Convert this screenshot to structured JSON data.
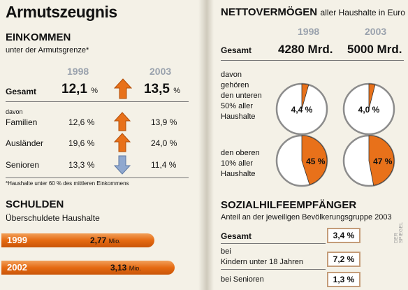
{
  "title": "Armutszeugnis",
  "einkommen": {
    "heading": "EINKOMMEN",
    "subtitle": "unter der Armutsgrenze*",
    "years": [
      "1998",
      "2003"
    ],
    "gesamt": {
      "label": "Gesamt",
      "v1998": "12,1",
      "v2003": "13,5",
      "unit": "%"
    },
    "davon": "davon",
    "rows": [
      {
        "label": "Familien",
        "v1998": "12,6 %",
        "v2003": "13,9 %",
        "trend": "up"
      },
      {
        "label": "Ausländer",
        "v1998": "19,6 %",
        "v2003": "24,0 %",
        "trend": "up"
      },
      {
        "label": "Senioren",
        "v1998": "13,3 %",
        "v2003": "11,4 %",
        "trend": "down"
      }
    ],
    "footnote": "*Haushalte unter 60 % des mittleren Einkommens"
  },
  "schulden": {
    "heading": "SCHULDEN",
    "subtitle": "Überschuldete Haushalte",
    "unit": "Mio.",
    "bars": [
      {
        "year": "1999",
        "value_label": "2,77",
        "value": 2.77
      },
      {
        "year": "2002",
        "value_label": "3,13",
        "value": 3.13
      }
    ]
  },
  "nettovermoegen": {
    "heading": "NETTOVERMÖGEN",
    "heading_suffix": "aller Haushalte in Euro",
    "years": [
      "1998",
      "2003"
    ],
    "gesamt": {
      "label": "Gesamt",
      "v1998": "4280 Mrd.",
      "v2003": "5000 Mrd."
    },
    "label_unten": "davon gehören den unteren 50% aller Haushalte",
    "label_unten_lines": [
      "davon",
      "gehören",
      "den unteren",
      "50% aller",
      "Haushalte"
    ],
    "label_oben_lines": [
      "den oberen",
      "10% aller",
      "Haushalte"
    ]
  },
  "sozialhilfe": {
    "heading": "SOZIALHILFEEMPFÄNGER",
    "subtitle": "Anteil an der jeweiligen Bevölkerungsgruppe 2003",
    "rows": [
      {
        "label_lines": [
          "Gesamt"
        ],
        "value": "3,4 %",
        "bold": true
      },
      {
        "label_lines": [
          "bei",
          "Kindern unter 18 Jahren"
        ],
        "value": "7,2 %",
        "bold": false
      },
      {
        "label_lines": [
          "bei Senioren"
        ],
        "value": "1,3 %",
        "bold": false
      }
    ]
  },
  "credit": "DER SPIEGEL",
  "colors": {
    "accent": "#e8711a",
    "arrow_up": "#e8711a",
    "arrow_down": "#8fa8cf",
    "year_gray": "#9aa2ad",
    "box_border": "#c49c79"
  },
  "chart_data": [
    {
      "type": "pie",
      "title": "Nettovermögen – Anteil der unteren 50% aller Haushalte",
      "categories": [
        "1998",
        "2003"
      ],
      "values": [
        4.4,
        4.0
      ],
      "labels": [
        "4,4 %",
        "4,0 %"
      ]
    },
    {
      "type": "pie",
      "title": "Nettovermögen – Anteil der oberen 10% aller Haushalte",
      "categories": [
        "1998",
        "2003"
      ],
      "values": [
        45,
        47
      ],
      "labels": [
        "45 %",
        "47 %"
      ]
    },
    {
      "type": "bar",
      "title": "Schulden – Überschuldete Haushalte",
      "categories": [
        "1999",
        "2002"
      ],
      "values": [
        2.77,
        3.13
      ],
      "labels": [
        "2,77 Mio.",
        "3,13 Mio."
      ],
      "unit": "Mio."
    }
  ]
}
